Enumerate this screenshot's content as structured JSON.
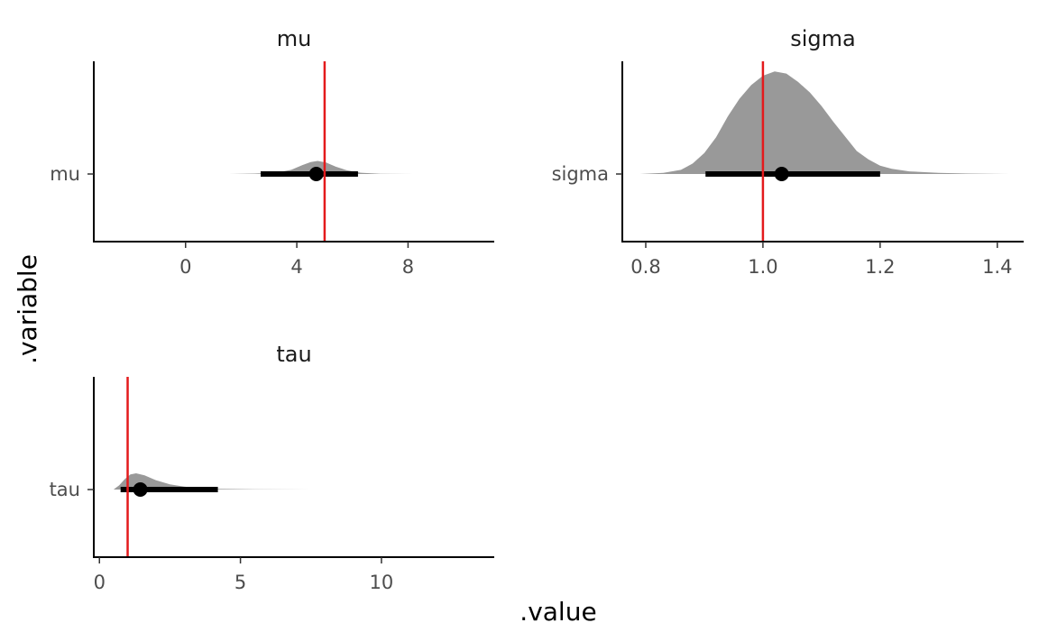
{
  "chart_data": {
    "type": "halfeye",
    "xlabel": ".value",
    "ylabel": ".variable",
    "colors": {
      "density": "#999999",
      "interval": "#000000",
      "reference": "#e41a1c"
    },
    "facets": [
      {
        "title": "mu",
        "y_category": "mu",
        "xlim": [
          -3.3,
          11.1
        ],
        "x_ticks": [
          0,
          4,
          8
        ],
        "reference_x": 5,
        "point": 4.7,
        "interval": [
          2.7,
          6.2
        ],
        "density": [
          [
            1.5,
            0
          ],
          [
            2.5,
            0.004
          ],
          [
            3.3,
            0.015
          ],
          [
            3.8,
            0.04
          ],
          [
            4.2,
            0.085
          ],
          [
            4.5,
            0.115
          ],
          [
            4.75,
            0.125
          ],
          [
            5.05,
            0.11
          ],
          [
            5.4,
            0.07
          ],
          [
            5.8,
            0.035
          ],
          [
            6.3,
            0.012
          ],
          [
            7.0,
            0.003
          ],
          [
            8.2,
            0
          ]
        ]
      },
      {
        "title": "sigma",
        "y_category": "sigma",
        "xlim": [
          0.76,
          1.445
        ],
        "x_ticks": [
          0.8,
          1.0,
          1.2,
          1.4
        ],
        "reference_x": 1.0,
        "point": 1.032,
        "interval": [
          0.902,
          1.2
        ],
        "density": [
          [
            0.79,
            0
          ],
          [
            0.83,
            0.01
          ],
          [
            0.86,
            0.04
          ],
          [
            0.88,
            0.1
          ],
          [
            0.9,
            0.2
          ],
          [
            0.92,
            0.35
          ],
          [
            0.94,
            0.55
          ],
          [
            0.96,
            0.72
          ],
          [
            0.98,
            0.85
          ],
          [
            1.0,
            0.94
          ],
          [
            1.02,
            0.98
          ],
          [
            1.04,
            0.96
          ],
          [
            1.06,
            0.88
          ],
          [
            1.08,
            0.78
          ],
          [
            1.1,
            0.65
          ],
          [
            1.12,
            0.5
          ],
          [
            1.14,
            0.36
          ],
          [
            1.16,
            0.22
          ],
          [
            1.18,
            0.14
          ],
          [
            1.2,
            0.08
          ],
          [
            1.22,
            0.05
          ],
          [
            1.25,
            0.025
          ],
          [
            1.3,
            0.01
          ],
          [
            1.35,
            0.004
          ],
          [
            1.42,
            0
          ]
        ]
      },
      {
        "title": "tau",
        "y_category": "tau",
        "xlim": [
          -0.2,
          14
        ],
        "x_ticks": [
          0,
          5,
          10
        ],
        "reference_x": 1,
        "point": 1.45,
        "interval": [
          0.75,
          4.2
        ],
        "density": [
          [
            0.5,
            0
          ],
          [
            0.7,
            0.04
          ],
          [
            0.9,
            0.1
          ],
          [
            1.1,
            0.145
          ],
          [
            1.3,
            0.155
          ],
          [
            1.6,
            0.135
          ],
          [
            2.0,
            0.09
          ],
          [
            2.5,
            0.05
          ],
          [
            3.0,
            0.028
          ],
          [
            3.5,
            0.015
          ],
          [
            4.2,
            0.007
          ],
          [
            5.5,
            0.002
          ],
          [
            7.5,
            0
          ]
        ]
      }
    ]
  }
}
